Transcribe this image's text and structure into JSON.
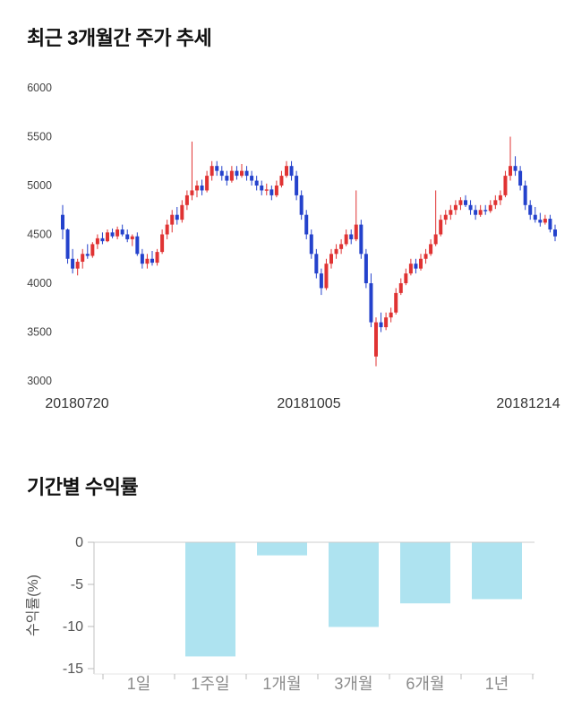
{
  "sections": {
    "price_trend": {
      "title": "최근 3개월간 주가 추세"
    },
    "returns": {
      "title": "기간별 수익률"
    }
  },
  "chart_data": [
    {
      "type": "candlestick",
      "title": "최근 3개월간 주가 추세",
      "ylim": [
        3000,
        6000
      ],
      "yticks": [
        3000,
        3500,
        4000,
        4500,
        5000,
        5500,
        6000
      ],
      "xtick_labels": [
        "20180720",
        "20181005",
        "20181214"
      ],
      "up_color": "#e03333",
      "down_color": "#2442cc",
      "ohlc": [
        [
          4700,
          4800,
          4450,
          4550
        ],
        [
          4550,
          4560,
          4200,
          4250
        ],
        [
          4250,
          4350,
          4100,
          4150
        ],
        [
          4150,
          4250,
          4080,
          4220
        ],
        [
          4220,
          4350,
          4150,
          4300
        ],
        [
          4300,
          4400,
          4250,
          4280
        ],
        [
          4280,
          4420,
          4260,
          4400
        ],
        [
          4400,
          4500,
          4350,
          4460
        ],
        [
          4460,
          4520,
          4400,
          4430
        ],
        [
          4430,
          4550,
          4420,
          4520
        ],
        [
          4520,
          4560,
          4460,
          4480
        ],
        [
          4480,
          4580,
          4450,
          4550
        ],
        [
          4550,
          4600,
          4480,
          4500
        ],
        [
          4500,
          4550,
          4420,
          4450
        ],
        [
          4450,
          4500,
          4380,
          4480
        ],
        [
          4480,
          4520,
          4280,
          4300
        ],
        [
          4300,
          4350,
          4150,
          4200
        ],
        [
          4200,
          4300,
          4150,
          4250
        ],
        [
          4250,
          4330,
          4180,
          4210
        ],
        [
          4210,
          4350,
          4180,
          4320
        ],
        [
          4320,
          4550,
          4300,
          4500
        ],
        [
          4500,
          4650,
          4450,
          4600
        ],
        [
          4600,
          4750,
          4520,
          4700
        ],
        [
          4700,
          4780,
          4600,
          4650
        ],
        [
          4650,
          4850,
          4620,
          4800
        ],
        [
          4800,
          4950,
          4750,
          4900
        ],
        [
          4900,
          5450,
          4850,
          4950
        ],
        [
          4950,
          5050,
          4880,
          5000
        ],
        [
          5000,
          5060,
          4900,
          4950
        ],
        [
          4950,
          5150,
          4930,
          5100
        ],
        [
          5100,
          5250,
          5050,
          5200
        ],
        [
          5200,
          5250,
          5100,
          5150
        ],
        [
          5150,
          5200,
          5050,
          5100
        ],
        [
          5100,
          5150,
          5000,
          5050
        ],
        [
          5050,
          5200,
          5030,
          5150
        ],
        [
          5150,
          5200,
          5060,
          5100
        ],
        [
          5100,
          5220,
          5080,
          5150
        ],
        [
          5150,
          5200,
          5050,
          5100
        ],
        [
          5100,
          5150,
          5000,
          5050
        ],
        [
          5050,
          5100,
          4950,
          5000
        ],
        [
          5000,
          5050,
          4900,
          4950
        ],
        [
          4950,
          5020,
          4900,
          4960
        ],
        [
          4960,
          5000,
          4850,
          4900
        ],
        [
          4900,
          5050,
          4880,
          5000
        ],
        [
          5000,
          5150,
          4980,
          5100
        ],
        [
          5100,
          5250,
          5080,
          5200
        ],
        [
          5200,
          5250,
          5050,
          5100
        ],
        [
          5100,
          5150,
          4850,
          4900
        ],
        [
          4900,
          4950,
          4650,
          4700
        ],
        [
          4700,
          4750,
          4450,
          4500
        ],
        [
          4500,
          4550,
          4250,
          4300
        ],
        [
          4300,
          4350,
          4050,
          4100
        ],
        [
          4100,
          4150,
          3880,
          3950
        ],
        [
          3950,
          4250,
          3930,
          4200
        ],
        [
          4200,
          4350,
          4150,
          4300
        ],
        [
          4300,
          4400,
          4250,
          4350
        ],
        [
          4350,
          4450,
          4300,
          4400
        ],
        [
          4400,
          4550,
          4380,
          4500
        ],
        [
          4500,
          4550,
          4400,
          4450
        ],
        [
          4450,
          4950,
          4430,
          4600
        ],
        [
          4600,
          4650,
          4250,
          4300
        ],
        [
          4300,
          4350,
          3950,
          4000
        ],
        [
          4000,
          4100,
          3550,
          3600
        ],
        [
          3250,
          3650,
          3150,
          3600
        ],
        [
          3600,
          3700,
          3500,
          3550
        ],
        [
          3550,
          3700,
          3520,
          3650
        ],
        [
          3650,
          3750,
          3600,
          3700
        ],
        [
          3700,
          3950,
          3680,
          3900
        ],
        [
          3900,
          4050,
          3880,
          4000
        ],
        [
          4000,
          4150,
          3980,
          4100
        ],
        [
          4100,
          4250,
          4080,
          4200
        ],
        [
          4200,
          4250,
          4100,
          4150
        ],
        [
          4150,
          4300,
          4130,
          4250
        ],
        [
          4250,
          4350,
          4200,
          4300
        ],
        [
          4300,
          4450,
          4280,
          4400
        ],
        [
          4400,
          4950,
          4380,
          4500
        ],
        [
          4500,
          4700,
          4480,
          4650
        ],
        [
          4650,
          4750,
          4600,
          4700
        ],
        [
          4700,
          4800,
          4650,
          4750
        ],
        [
          4750,
          4850,
          4700,
          4800
        ],
        [
          4800,
          4880,
          4750,
          4850
        ],
        [
          4850,
          4900,
          4780,
          4800
        ],
        [
          4800,
          4850,
          4700,
          4750
        ],
        [
          4750,
          4800,
          4650,
          4700
        ],
        [
          4700,
          4800,
          4680,
          4750
        ],
        [
          4750,
          4800,
          4700,
          4740
        ],
        [
          4740,
          4850,
          4720,
          4800
        ],
        [
          4800,
          4900,
          4760,
          4850
        ],
        [
          4850,
          4950,
          4800,
          4900
        ],
        [
          4900,
          5150,
          4880,
          5100
        ],
        [
          5100,
          5500,
          5050,
          5200
        ],
        [
          5200,
          5300,
          5100,
          5150
        ],
        [
          5150,
          5200,
          4950,
          5000
        ],
        [
          5000,
          5050,
          4750,
          4800
        ],
        [
          4800,
          4850,
          4650,
          4700
        ],
        [
          4700,
          4780,
          4620,
          4650
        ],
        [
          4650,
          4720,
          4580,
          4620
        ],
        [
          4620,
          4700,
          4600,
          4660
        ],
        [
          4660,
          4700,
          4520,
          4550
        ],
        [
          4550,
          4600,
          4430,
          4480
        ]
      ]
    },
    {
      "type": "bar",
      "title": "기간별 수익률",
      "categories": [
        "1일",
        "1주일",
        "1개월",
        "3개월",
        "6개월",
        "1년"
      ],
      "values": [
        0,
        -13.5,
        -1.5,
        -10,
        -7.2,
        -6.7
      ],
      "ylabel": "수익률(%)",
      "ylim": [
        -15,
        0
      ],
      "yticks": [
        0,
        -5,
        -10,
        -15
      ],
      "bar_color": "#aee3f0",
      "axis_color": "#c0c0c0",
      "tick_label_color": "#555555",
      "category_label_color": "#8b8b8b"
    }
  ]
}
